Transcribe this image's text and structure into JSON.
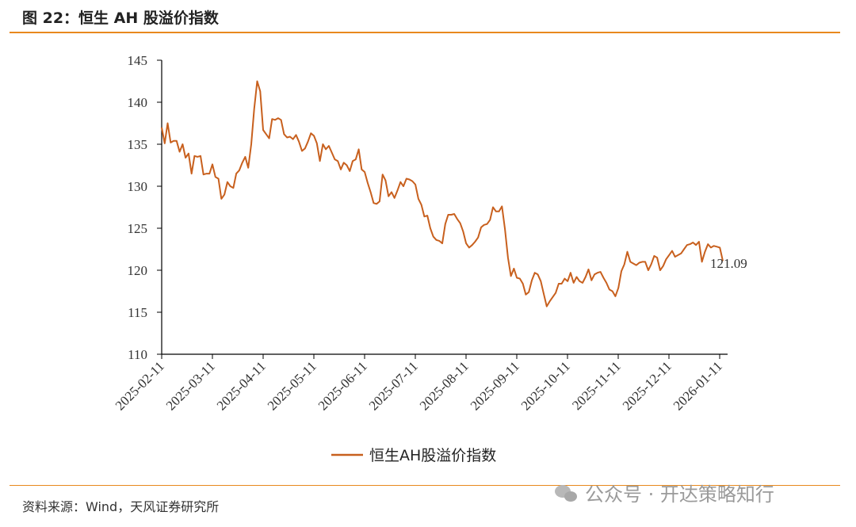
{
  "figure": {
    "title": "图 22：恒生 AH 股溢价指数",
    "source": "资料来源：Wind，天风证券研究所",
    "watermark": "公众号 · 开达策略知行"
  },
  "colors": {
    "accent": "#e8891d",
    "series": "#c8601e",
    "axis": "#000000"
  },
  "chart_data": {
    "type": "line",
    "title": "",
    "xlabel": "",
    "ylabel": "",
    "ylim": [
      110,
      145
    ],
    "yticks": [
      "110",
      "115",
      "120",
      "125",
      "130",
      "135",
      "140",
      "145"
    ],
    "xticks": [
      "2025-02-11",
      "2025-03-11",
      "2025-04-11",
      "2025-05-11",
      "2025-06-11",
      "2025-07-11",
      "2025-08-11",
      "2025-09-11",
      "2025-10-11",
      "2025-11-11",
      "2025-12-11",
      "2026-01-11"
    ],
    "legend": "bottom-center",
    "end_label": "121.09",
    "series": [
      {
        "name": "恒生AH股溢价指数",
        "values": [
          137.0,
          135.1,
          137.5,
          135.2,
          135.4,
          135.4,
          134.1,
          135.0,
          133.4,
          133.9,
          131.5,
          133.6,
          133.5,
          133.6,
          131.4,
          131.5,
          131.5,
          132.6,
          131.1,
          130.9,
          128.5,
          129.0,
          130.5,
          130.0,
          129.8,
          131.5,
          131.9,
          132.8,
          133.5,
          132.2,
          135.0,
          139.2,
          142.5,
          141.3,
          136.7,
          136.2,
          135.7,
          138.0,
          137.9,
          138.1,
          137.9,
          136.2,
          135.8,
          135.9,
          135.6,
          136.1,
          135.3,
          134.2,
          134.5,
          135.3,
          136.3,
          136.0,
          135.1,
          133.0,
          135.0,
          134.4,
          134.8,
          134.0,
          133.2,
          133.0,
          132.0,
          132.8,
          132.5,
          131.8,
          133.0,
          133.2,
          134.4,
          132.0,
          131.7,
          130.4,
          129.3,
          128.0,
          127.9,
          128.2,
          131.4,
          130.7,
          128.8,
          129.3,
          128.6,
          129.5,
          130.5,
          130.0,
          130.9,
          130.8,
          130.6,
          130.2,
          128.5,
          127.8,
          126.4,
          126.5,
          125.0,
          124.0,
          123.6,
          123.5,
          123.2,
          125.5,
          126.6,
          126.6,
          126.7,
          126.1,
          125.6,
          124.6,
          123.2,
          122.7,
          123.0,
          123.4,
          123.9,
          125.1,
          125.4,
          125.5,
          126.0,
          127.5,
          127.0,
          127.0,
          127.6,
          124.9,
          121.5,
          119.3,
          120.2,
          119.1,
          119.0,
          118.4,
          117.1,
          117.4,
          118.8,
          119.7,
          119.5,
          118.7,
          117.2,
          115.7,
          116.3,
          116.8,
          117.3,
          118.4,
          118.4,
          119.0,
          118.7,
          119.7,
          118.5,
          119.2,
          118.7,
          118.5,
          119.2,
          120.1,
          118.8,
          119.5,
          119.7,
          119.8,
          119.1,
          118.5,
          117.7,
          117.5,
          116.9,
          117.9,
          119.9,
          120.7,
          122.2,
          121.0,
          120.8,
          120.6,
          120.9,
          121.0,
          121.0,
          120.0,
          120.7,
          121.7,
          121.5,
          120.0,
          120.5,
          121.3,
          121.8,
          122.3,
          121.6,
          121.8,
          122.0,
          122.5,
          123.0,
          123.1,
          123.3,
          123.0,
          123.4,
          121.0,
          122.2,
          123.1,
          122.7,
          122.9,
          122.8,
          122.7,
          121.1
        ]
      }
    ]
  }
}
